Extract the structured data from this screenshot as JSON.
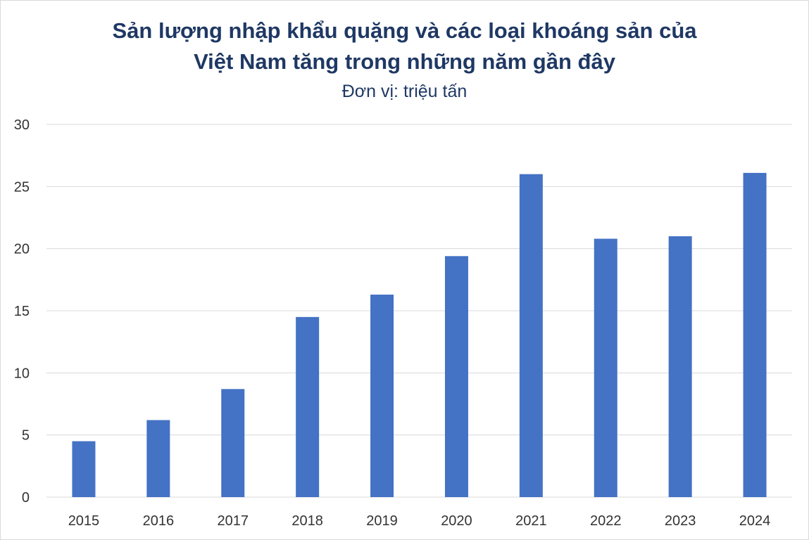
{
  "chart_data": {
    "type": "bar",
    "title": "Sản lượng nhập khẩu quặng và các loại khoáng sản của Việt Nam tăng trong những năm gần đây",
    "title_lines": [
      "Sản lượng nhập khẩu quặng và các loại khoáng sản của",
      "Việt Nam tăng trong những năm gần đây"
    ],
    "subtitle": "Đơn vị: triệu tấn",
    "categories": [
      "2015",
      "2016",
      "2017",
      "2018",
      "2019",
      "2020",
      "2021",
      "2022",
      "2023",
      "2024"
    ],
    "values": [
      4.5,
      6.2,
      8.7,
      14.5,
      16.3,
      19.4,
      26.0,
      20.8,
      21.0,
      26.1
    ],
    "xlabel": "",
    "ylabel": "",
    "ylim": [
      0,
      30
    ],
    "yticks": [
      "0",
      "5",
      "10",
      "15",
      "20",
      "25",
      "30"
    ],
    "grid": true,
    "legend": "none",
    "bar_color": "#4472c4",
    "grid_color": "#d9d9d9"
  }
}
